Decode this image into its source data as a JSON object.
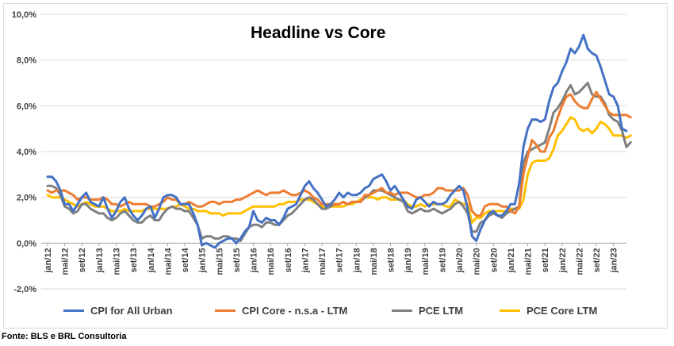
{
  "chart_data": {
    "type": "line",
    "title": "Headline vs Core",
    "xlabel": "",
    "ylabel": "",
    "ylim": [
      -2.0,
      10.0
    ],
    "yticks": [
      "-2,0%",
      "0,0%",
      "2,0%",
      "4,0%",
      "6,0%",
      "8,0%",
      "10,0%"
    ],
    "x_start": "2012-01",
    "x_tick_labels": [
      "jan/12",
      "mai/12",
      "set/12",
      "jan/13",
      "mai/13",
      "set/13",
      "jan/14",
      "mai/14",
      "set/14",
      "jan/15",
      "mai/15",
      "set/15",
      "jan/16",
      "mai/16",
      "set/16",
      "jan/17",
      "mai/17",
      "set/17",
      "jan/18",
      "mai/18",
      "set/18",
      "jan/19",
      "mai/19",
      "set/19",
      "jan/20",
      "mai/20",
      "set/20",
      "jan/21",
      "mai/21",
      "set/21",
      "jan/22",
      "mai/22",
      "set/22",
      "jan/23"
    ],
    "grid": "horizontal",
    "legend_position": "bottom",
    "series": [
      {
        "name": "CPI for All Urban",
        "color": "#4472C4",
        "values": [
          2.9,
          2.9,
          2.7,
          2.3,
          1.7,
          1.7,
          1.4,
          1.7,
          2.0,
          2.2,
          1.8,
          1.7,
          1.6,
          2.0,
          1.5,
          1.1,
          1.4,
          1.8,
          2.0,
          1.5,
          1.2,
          1.0,
          1.2,
          1.5,
          1.6,
          1.1,
          1.5,
          2.0,
          2.1,
          2.1,
          2.0,
          1.7,
          1.7,
          1.7,
          1.3,
          0.8,
          -0.1,
          0.0,
          -0.1,
          -0.2,
          0.0,
          0.1,
          0.2,
          0.2,
          0.0,
          0.2,
          0.5,
          0.7,
          1.4,
          1.0,
          0.9,
          1.1,
          1.0,
          1.0,
          0.8,
          1.1,
          1.5,
          1.6,
          1.7,
          2.1,
          2.5,
          2.7,
          2.4,
          2.2,
          1.9,
          1.6,
          1.7,
          1.9,
          2.2,
          2.0,
          2.2,
          2.1,
          2.1,
          2.2,
          2.4,
          2.5,
          2.8,
          2.9,
          3.0,
          2.7,
          2.3,
          2.5,
          2.2,
          1.9,
          1.6,
          1.5,
          1.9,
          2.0,
          1.8,
          1.6,
          1.8,
          1.7,
          1.7,
          1.8,
          2.1,
          2.3,
          2.5,
          2.3,
          1.5,
          0.3,
          0.1,
          0.6,
          1.0,
          1.3,
          1.4,
          1.2,
          1.2,
          1.4,
          1.7,
          1.7,
          2.6,
          4.2,
          5.0,
          5.4,
          5.4,
          5.3,
          5.4,
          6.2,
          6.8,
          7.0,
          7.5,
          7.9,
          8.5,
          8.3,
          8.6,
          9.1,
          8.5,
          8.3,
          8.2,
          7.7,
          7.1,
          6.5,
          6.4,
          6.0,
          5.0,
          4.9
        ],
        "dashed": false
      },
      {
        "name": "CPI Core - n.s.a - LTM",
        "color": "#ED7D31",
        "values": [
          2.3,
          2.2,
          2.3,
          2.3,
          2.3,
          2.2,
          2.1,
          1.9,
          2.0,
          2.0,
          1.9,
          1.9,
          1.9,
          2.0,
          1.9,
          1.7,
          1.7,
          1.6,
          1.7,
          1.8,
          1.7,
          1.7,
          1.7,
          1.7,
          1.6,
          1.6,
          1.7,
          1.8,
          2.0,
          1.9,
          1.9,
          1.7,
          1.7,
          1.8,
          1.7,
          1.6,
          1.6,
          1.7,
          1.8,
          1.8,
          1.7,
          1.8,
          1.8,
          1.8,
          1.9,
          1.9,
          2.0,
          2.1,
          2.2,
          2.3,
          2.2,
          2.1,
          2.2,
          2.2,
          2.2,
          2.3,
          2.2,
          2.1,
          2.1,
          2.2,
          2.3,
          2.2,
          2.0,
          1.9,
          1.7,
          1.7,
          1.7,
          1.7,
          1.7,
          1.8,
          1.7,
          1.8,
          1.8,
          1.8,
          2.1,
          2.1,
          2.2,
          2.3,
          2.4,
          2.2,
          2.2,
          2.1,
          2.2,
          2.2,
          2.2,
          2.1,
          2.0,
          2.0,
          2.1,
          2.1,
          2.2,
          2.4,
          2.4,
          2.3,
          2.3,
          2.3,
          2.3,
          2.4,
          2.1,
          1.4,
          1.2,
          1.2,
          1.6,
          1.7,
          1.7,
          1.7,
          1.6,
          1.6,
          1.4,
          1.3,
          1.6,
          3.0,
          3.8,
          4.5,
          4.3,
          4.0,
          4.0,
          4.6,
          4.9,
          5.5,
          6.0,
          6.4,
          6.5,
          6.2,
          6.0,
          5.9,
          5.9,
          6.3,
          6.6,
          6.3,
          6.0,
          5.7,
          5.6,
          5.6,
          5.6,
          5.6,
          5.5
        ],
        "dashed": false
      },
      {
        "name": "PCE LTM",
        "color": "#7F7F7F",
        "values": [
          2.5,
          2.5,
          2.4,
          2.1,
          1.6,
          1.5,
          1.3,
          1.4,
          1.7,
          1.7,
          1.5,
          1.4,
          1.3,
          1.3,
          1.1,
          1.0,
          1.1,
          1.3,
          1.4,
          1.2,
          1.0,
          0.9,
          0.9,
          1.1,
          1.2,
          1.0,
          1.0,
          1.3,
          1.5,
          1.6,
          1.5,
          1.5,
          1.4,
          1.4,
          1.1,
          0.8,
          0.2,
          0.3,
          0.3,
          0.2,
          0.2,
          0.3,
          0.3,
          0.2,
          0.2,
          0.1,
          0.4,
          0.7,
          0.8,
          0.8,
          0.7,
          0.9,
          0.9,
          0.8,
          0.8,
          1.0,
          1.2,
          1.3,
          1.5,
          1.7,
          1.9,
          2.0,
          1.9,
          1.7,
          1.5,
          1.5,
          1.6,
          1.7,
          1.7,
          1.8,
          1.7,
          1.8,
          1.8,
          1.8,
          2.0,
          2.1,
          2.3,
          2.3,
          2.3,
          2.2,
          2.1,
          2.0,
          1.9,
          1.8,
          1.4,
          1.3,
          1.4,
          1.5,
          1.4,
          1.4,
          1.5,
          1.4,
          1.3,
          1.4,
          1.5,
          1.7,
          1.8,
          1.6,
          1.3,
          0.5,
          0.5,
          0.9,
          1.0,
          1.2,
          1.3,
          1.2,
          1.1,
          1.3,
          1.4,
          1.5,
          1.6,
          3.5,
          4.0,
          4.1,
          4.2,
          4.3,
          4.4,
          5.0,
          5.7,
          5.9,
          6.2,
          6.6,
          6.9,
          6.5,
          6.6,
          6.8,
          7.0,
          6.5,
          6.4,
          6.4,
          6.1,
          5.6,
          5.4,
          5.3,
          4.9,
          4.2,
          4.4
        ],
        "dashed": false
      },
      {
        "name": "PCE Core LTM",
        "color": "#FFC000",
        "values": [
          2.1,
          2.0,
          2.0,
          2.0,
          1.9,
          1.8,
          1.7,
          1.6,
          1.7,
          1.8,
          1.7,
          1.6,
          1.6,
          1.6,
          1.5,
          1.4,
          1.4,
          1.4,
          1.5,
          1.4,
          1.4,
          1.4,
          1.4,
          1.5,
          1.5,
          1.5,
          1.5,
          1.5,
          1.5,
          1.6,
          1.6,
          1.7,
          1.6,
          1.5,
          1.5,
          1.4,
          1.4,
          1.4,
          1.3,
          1.3,
          1.3,
          1.2,
          1.3,
          1.3,
          1.3,
          1.3,
          1.4,
          1.5,
          1.6,
          1.6,
          1.6,
          1.6,
          1.6,
          1.6,
          1.7,
          1.7,
          1.8,
          1.8,
          1.8,
          1.9,
          1.9,
          1.9,
          1.8,
          1.7,
          1.6,
          1.6,
          1.6,
          1.6,
          1.6,
          1.6,
          1.7,
          1.7,
          1.8,
          1.9,
          2.0,
          2.0,
          2.0,
          1.9,
          2.0,
          2.0,
          1.9,
          1.9,
          1.9,
          1.9,
          1.7,
          1.6,
          1.6,
          1.7,
          1.6,
          1.7,
          1.7,
          1.7,
          1.7,
          1.6,
          1.6,
          1.9,
          1.8,
          1.7,
          1.7,
          0.9,
          1.1,
          1.1,
          1.3,
          1.4,
          1.4,
          1.4,
          1.4,
          1.4,
          1.5,
          1.5,
          1.5,
          1.9,
          3.0,
          3.5,
          3.6,
          3.6,
          3.6,
          3.7,
          4.1,
          4.7,
          4.9,
          5.2,
          5.5,
          5.4,
          5.0,
          4.9,
          5.0,
          4.8,
          5.0,
          5.3,
          5.2,
          5.0,
          4.7,
          4.7,
          4.7,
          4.6,
          4.7
        ],
        "dashed": false
      }
    ]
  },
  "source": "Fonte: BLS e BRL Consultoria"
}
